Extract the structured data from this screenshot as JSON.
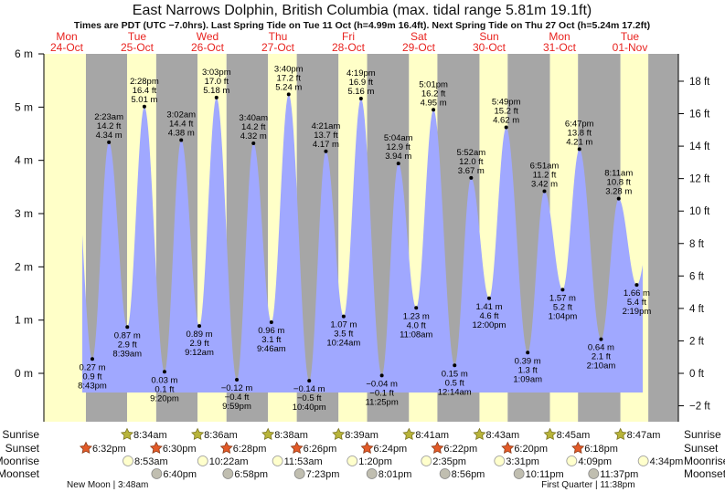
{
  "chart_data": {
    "type": "area",
    "title": "East Narrows Dolphin, British Columbia (max. tidal range 5.81m 19.1ft)",
    "subtitle": "Times are PDT (UTC −7.0hrs). Last Spring Tide on Tue 11 Oct (h=4.99m 16.4ft). Next Spring Tide on Thu 27 Oct (h=5.24m 17.2ft)",
    "colors": {
      "water": "#a0a8ff",
      "day": "#ffffc8",
      "night": "#a6a6a6",
      "day_label": "#e8231f"
    },
    "days": [
      {
        "weekday": "Mon",
        "date": "24-Oct"
      },
      {
        "weekday": "Tue",
        "date": "25-Oct"
      },
      {
        "weekday": "Wed",
        "date": "26-Oct"
      },
      {
        "weekday": "Thu",
        "date": "27-Oct"
      },
      {
        "weekday": "Fri",
        "date": "28-Oct"
      },
      {
        "weekday": "Sat",
        "date": "29-Oct"
      },
      {
        "weekday": "Sun",
        "date": "30-Oct"
      },
      {
        "weekday": "Mon",
        "date": "31-Oct"
      },
      {
        "weekday": "Tue",
        "date": "01-Nov"
      }
    ],
    "y_left": {
      "unit": "m",
      "ylim": [
        -0.9,
        6
      ],
      "ticks": [
        "0 m",
        "1 m",
        "2 m",
        "3 m",
        "4 m",
        "5 m",
        "6 m"
      ]
    },
    "y_right": {
      "unit": "ft",
      "ticks": [
        "−2 ft",
        "0 ft",
        "2 ft",
        "4 ft",
        "6 ft",
        "8 ft",
        "10 ft",
        "12 ft",
        "14 ft",
        "16 ft",
        "18 ft"
      ]
    },
    "tides": [
      {
        "day": 0,
        "time": "8:43pm",
        "m": "0.27 m",
        "ft": "0.9 ft",
        "type": "low"
      },
      {
        "day": 1,
        "time": "2:23am",
        "m": "4.34 m",
        "ft": "14.2 ft",
        "type": "high"
      },
      {
        "day": 1,
        "time": "8:39am",
        "m": "0.87 m",
        "ft": "2.9 ft",
        "type": "low"
      },
      {
        "day": 1,
        "time": "2:28pm",
        "m": "5.01 m",
        "ft": "16.4 ft",
        "type": "high"
      },
      {
        "day": 1,
        "time": "9:20pm",
        "m": "0.03 m",
        "ft": "0.1 ft",
        "type": "low"
      },
      {
        "day": 2,
        "time": "3:02am",
        "m": "4.38 m",
        "ft": "14.4 ft",
        "type": "high"
      },
      {
        "day": 2,
        "time": "9:12am",
        "m": "0.89 m",
        "ft": "2.9 ft",
        "type": "low"
      },
      {
        "day": 2,
        "time": "3:03pm",
        "m": "5.18 m",
        "ft": "17.0 ft",
        "type": "high"
      },
      {
        "day": 2,
        "time": "9:59pm",
        "m": "−0.12 m",
        "ft": "−0.4 ft",
        "type": "low"
      },
      {
        "day": 3,
        "time": "3:40am",
        "m": "4.32 m",
        "ft": "14.2 ft",
        "type": "high"
      },
      {
        "day": 3,
        "time": "9:46am",
        "m": "0.96 m",
        "ft": "3.1 ft",
        "type": "low"
      },
      {
        "day": 3,
        "time": "3:40pm",
        "m": "5.24 m",
        "ft": "17.2 ft",
        "type": "high"
      },
      {
        "day": 3,
        "time": "10:40pm",
        "m": "−0.14 m",
        "ft": "−0.5 ft",
        "type": "low"
      },
      {
        "day": 4,
        "time": "4:21am",
        "m": "4.17 m",
        "ft": "13.7 ft",
        "type": "high"
      },
      {
        "day": 4,
        "time": "10:24am",
        "m": "1.07 m",
        "ft": "3.5 ft",
        "type": "low"
      },
      {
        "day": 4,
        "time": "4:19pm",
        "m": "5.16 m",
        "ft": "16.9 ft",
        "type": "high"
      },
      {
        "day": 4,
        "time": "11:25pm",
        "m": "−0.04 m",
        "ft": "−0.1 ft",
        "type": "low"
      },
      {
        "day": 5,
        "time": "5:04am",
        "m": "3.94 m",
        "ft": "12.9 ft",
        "type": "high"
      },
      {
        "day": 5,
        "time": "11:08am",
        "m": "1.23 m",
        "ft": "4.0 ft",
        "type": "low"
      },
      {
        "day": 5,
        "time": "5:01pm",
        "m": "4.95 m",
        "ft": "16.2 ft",
        "type": "high"
      },
      {
        "day": 6,
        "time": "12:14am",
        "m": "0.15 m",
        "ft": "0.5 ft",
        "type": "low"
      },
      {
        "day": 6,
        "time": "5:52am",
        "m": "3.67 m",
        "ft": "12.0 ft",
        "type": "high"
      },
      {
        "day": 6,
        "time": "12:00pm",
        "m": "1.41 m",
        "ft": "4.6 ft",
        "type": "low"
      },
      {
        "day": 6,
        "time": "5:49pm",
        "m": "4.62 m",
        "ft": "15.2 ft",
        "type": "high"
      },
      {
        "day": 7,
        "time": "1:09am",
        "m": "0.39 m",
        "ft": "1.3 ft",
        "type": "low"
      },
      {
        "day": 7,
        "time": "6:51am",
        "m": "3.42 m",
        "ft": "11.2 ft",
        "type": "high"
      },
      {
        "day": 7,
        "time": "1:04pm",
        "m": "1.57 m",
        "ft": "5.2 ft",
        "type": "low"
      },
      {
        "day": 7,
        "time": "6:47pm",
        "m": "4.21 m",
        "ft": "13.8 ft",
        "type": "high"
      },
      {
        "day": 8,
        "time": "2:10am",
        "m": "0.64 m",
        "ft": "2.1 ft",
        "type": "low"
      },
      {
        "day": 8,
        "time": "8:11am",
        "m": "3.28 m",
        "ft": "10.8 ft",
        "type": "high"
      },
      {
        "day": 8,
        "time": "2:19pm",
        "m": "1.66 m",
        "ft": "5.4 ft",
        "type": "low"
      }
    ],
    "rows": {
      "sunrise": {
        "label": "Sunrise",
        "events": [
          {
            "day": 1,
            "time": "8:34am"
          },
          {
            "day": 2,
            "time": "8:36am"
          },
          {
            "day": 3,
            "time": "8:38am"
          },
          {
            "day": 4,
            "time": "8:39am"
          },
          {
            "day": 5,
            "time": "8:41am"
          },
          {
            "day": 6,
            "time": "8:43am"
          },
          {
            "day": 7,
            "time": "8:45am"
          },
          {
            "day": 8,
            "time": "8:47am"
          }
        ]
      },
      "sunset": {
        "label": "Sunset",
        "events": [
          {
            "day": 0,
            "time": "6:32pm"
          },
          {
            "day": 1,
            "time": "6:30pm"
          },
          {
            "day": 2,
            "time": "6:28pm"
          },
          {
            "day": 3,
            "time": "6:26pm"
          },
          {
            "day": 4,
            "time": "6:24pm"
          },
          {
            "day": 5,
            "time": "6:22pm"
          },
          {
            "day": 6,
            "time": "6:20pm"
          },
          {
            "day": 7,
            "time": "6:18pm"
          }
        ]
      },
      "moonrise": {
        "label": "Moonrise",
        "events": [
          {
            "day": 1,
            "time": "8:53am"
          },
          {
            "day": 2,
            "time": "10:22am"
          },
          {
            "day": 3,
            "time": "11:53am"
          },
          {
            "day": 4,
            "time": "1:20pm"
          },
          {
            "day": 5,
            "time": "2:35pm"
          },
          {
            "day": 6,
            "time": "3:31pm"
          },
          {
            "day": 7,
            "time": "4:09pm"
          },
          {
            "day": 8,
            "time": "4:34pm"
          }
        ]
      },
      "moonset": {
        "label": "Moonset",
        "events": [
          {
            "day": 1,
            "time": "6:40pm"
          },
          {
            "day": 2,
            "time": "6:58pm"
          },
          {
            "day": 3,
            "time": "7:23pm"
          },
          {
            "day": 4,
            "time": "8:01pm"
          },
          {
            "day": 5,
            "time": "8:56pm"
          },
          {
            "day": 6,
            "time": "10:11pm"
          },
          {
            "day": 7,
            "time": "11:37pm"
          }
        ]
      }
    },
    "moon_phases": [
      {
        "day": 1,
        "time": "3:48am",
        "text": "New Moon | 3:48am"
      },
      {
        "day": 7,
        "time": "11:38pm",
        "text": "First Quarter | 11:38pm"
      }
    ]
  }
}
